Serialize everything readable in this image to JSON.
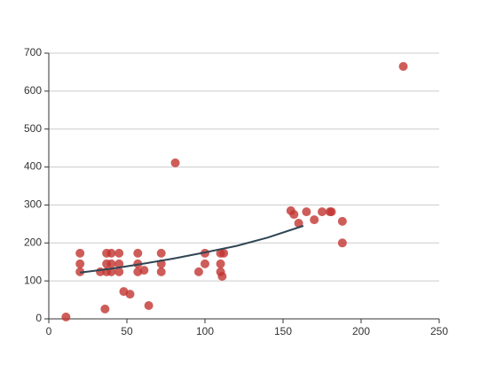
{
  "chart_data": {
    "type": "scatter",
    "x": [
      11,
      20,
      20,
      20,
      33,
      36,
      37,
      37,
      37,
      40,
      40,
      40,
      45,
      45,
      45,
      48,
      52,
      57,
      57,
      57,
      61,
      64,
      72,
      72,
      72,
      81,
      96,
      100,
      100,
      110,
      110,
      110,
      111,
      112,
      155,
      157,
      160,
      165,
      170,
      175,
      180,
      181,
      188,
      188,
      227
    ],
    "values": [
      5,
      173,
      145,
      124,
      124,
      26,
      173,
      145,
      124,
      173,
      145,
      124,
      173,
      145,
      124,
      72,
      65,
      173,
      145,
      124,
      128,
      35,
      173,
      145,
      124,
      411,
      124,
      173,
      145,
      173,
      145,
      124,
      112,
      173,
      285,
      275,
      252,
      282,
      261,
      282,
      282,
      282,
      257,
      200,
      665
    ],
    "color": "#c23531",
    "trend_x": [
      20,
      40,
      60,
      80,
      100,
      120,
      140,
      163
    ],
    "trend_values": [
      122,
      132,
      145,
      159,
      175,
      192,
      214,
      245
    ],
    "trend_color": "#2f4554",
    "xlim": [
      0,
      250
    ],
    "xticks": [
      0,
      50,
      100,
      150,
      200,
      250
    ],
    "ylim": [
      0,
      700
    ],
    "yticks": [
      0,
      100,
      200,
      300,
      400,
      500,
      600,
      700
    ],
    "grid": true
  }
}
